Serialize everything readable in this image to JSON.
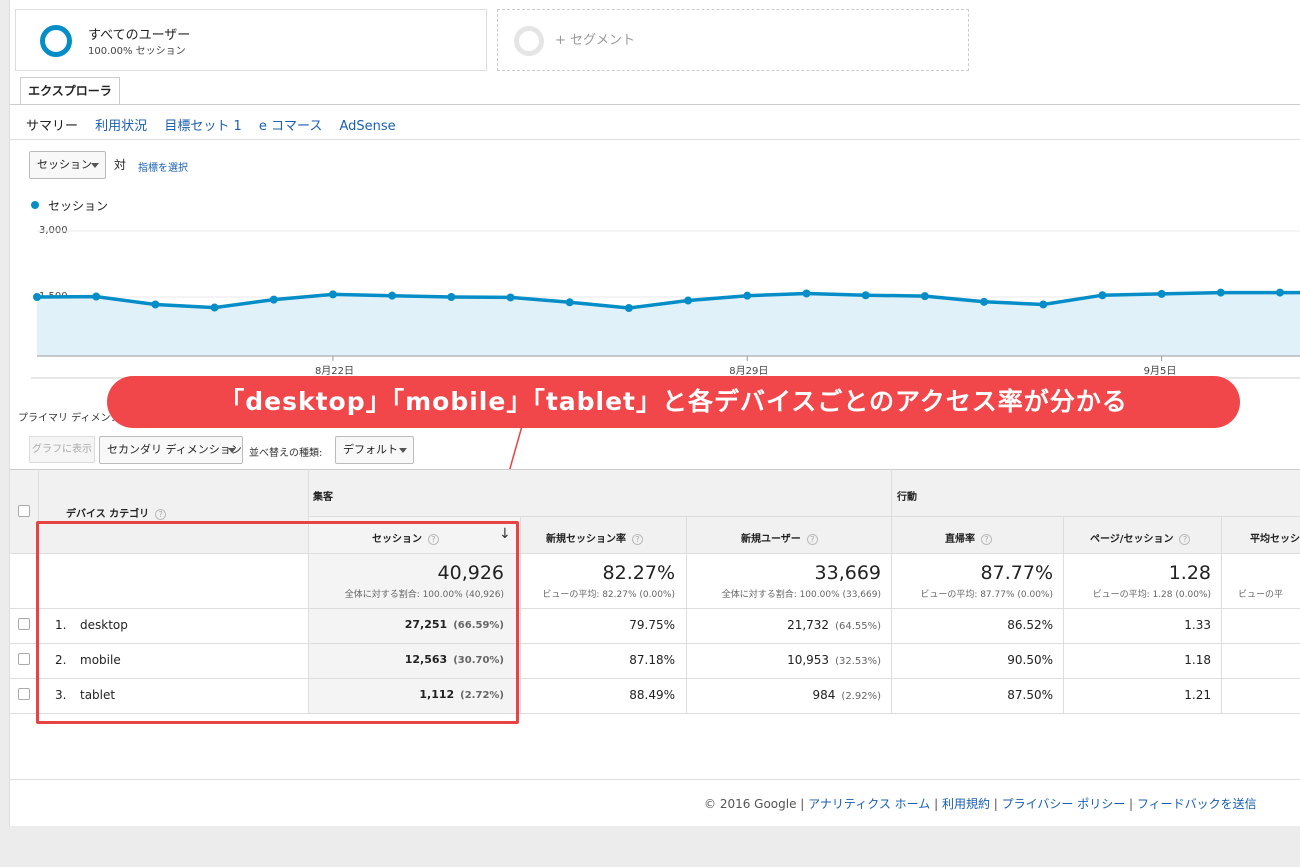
{
  "segments": {
    "all_users": {
      "title": "すべてのユーザー",
      "sub": "100.00% セッション"
    },
    "add_segment": "+ セグメント"
  },
  "tab": "エクスプローラ",
  "subnav": [
    "サマリー",
    "利用状況",
    "目標セット 1",
    "e コマース",
    "AdSense"
  ],
  "metric_select": "セッション",
  "vs": "対",
  "select_metric_link": "指標を選択",
  "legend": "セッション",
  "chart_data": {
    "type": "line",
    "series": [
      {
        "name": "セッション",
        "values": [
          1500,
          1510,
          1330,
          1260,
          1440,
          1560,
          1530,
          1500,
          1490,
          1380,
          1250,
          1420,
          1530,
          1580,
          1540,
          1520,
          1390,
          1330,
          1540,
          1570,
          1600,
          1600
        ]
      }
    ],
    "yticks": [
      "3,000",
      "1,500"
    ],
    "ylim": [
      0,
      3000
    ],
    "xticks": [
      {
        "label": "8月22日",
        "index": 5
      },
      {
        "label": "8月29日",
        "index": 12
      },
      {
        "label": "9月5日",
        "index": 19
      }
    ],
    "color": "#058dc7"
  },
  "callout": "「desktop」「mobile」「tablet」と各デバイスごとのアクセス率が分かる",
  "primary_dimension": "プライマリ ディメンション",
  "show_graph_btn": "グラフに表示",
  "secondary_dim": "セカンダリ ディメンション",
  "sort_label": "並べ替えの種類:",
  "sort_value": "デフォルト",
  "table": {
    "dim_header": "デバイス カテゴリ",
    "group_acquisition": "集客",
    "group_behavior": "行動",
    "cols": [
      "セッション",
      "新規セッション率",
      "新規ユーザー",
      "直帰率",
      "ページ/セッション",
      "平均セッション"
    ],
    "totals": [
      {
        "value": "40,926",
        "sub": "全体に対する割合: 100.00% (40,926)"
      },
      {
        "value": "82.27%",
        "sub": "ビューの平均: 82.27% (0.00%)"
      },
      {
        "value": "33,669",
        "sub": "全体に対する割合: 100.00% (33,669)"
      },
      {
        "value": "87.77%",
        "sub": "ビューの平均: 87.77% (0.00%)"
      },
      {
        "value": "1.28",
        "sub": "ビューの平均: 1.28 (0.00%)"
      },
      {
        "value": "",
        "sub": "ビューの平"
      }
    ],
    "rows": [
      {
        "n": "1.",
        "name": "desktop",
        "sessions": "27,251",
        "sessions_pct": "(66.59%)",
        "new_rate": "79.75%",
        "new_users": "21,732",
        "new_users_pct": "(64.55%)",
        "bounce": "86.52%",
        "pps": "1.33"
      },
      {
        "n": "2.",
        "name": "mobile",
        "sessions": "12,563",
        "sessions_pct": "(30.70%)",
        "new_rate": "87.18%",
        "new_users": "10,953",
        "new_users_pct": "(32.53%)",
        "bounce": "90.50%",
        "pps": "1.18"
      },
      {
        "n": "3.",
        "name": "tablet",
        "sessions": "1,112",
        "sessions_pct": "(2.72%)",
        "new_rate": "88.49%",
        "new_users": "984",
        "new_users_pct": "(2.92%)",
        "bounce": "87.50%",
        "pps": "1.21"
      }
    ]
  },
  "footer": {
    "copyright": "© 2016 Google",
    "links": [
      "アナリティクス ホーム",
      "利用規約",
      "プライバシー ポリシー",
      "フィードバックを送信"
    ]
  }
}
